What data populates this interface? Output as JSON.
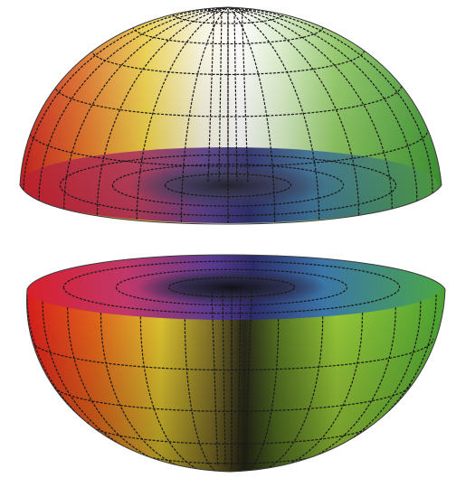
{
  "figure": {
    "background": "#ffffff",
    "wireframe_color": "#1a1a1a",
    "hue_stops": [
      {
        "name": "red",
        "color": "#e02020"
      },
      {
        "name": "orange",
        "color": "#f08a1c"
      },
      {
        "name": "yellow",
        "color": "#f2e23a"
      },
      {
        "name": "white",
        "color": "#f6f6f0"
      },
      {
        "name": "green",
        "color": "#5fb43a"
      },
      {
        "name": "blue",
        "color": "#3a46a8"
      },
      {
        "name": "violet",
        "color": "#6a2e8a"
      },
      {
        "name": "black",
        "color": "#0c0c0c"
      }
    ],
    "parts": [
      {
        "name": "top-hemisphere",
        "shading": "light-center"
      },
      {
        "name": "bottom-hemisphere",
        "shading": "dark-center"
      }
    ]
  }
}
